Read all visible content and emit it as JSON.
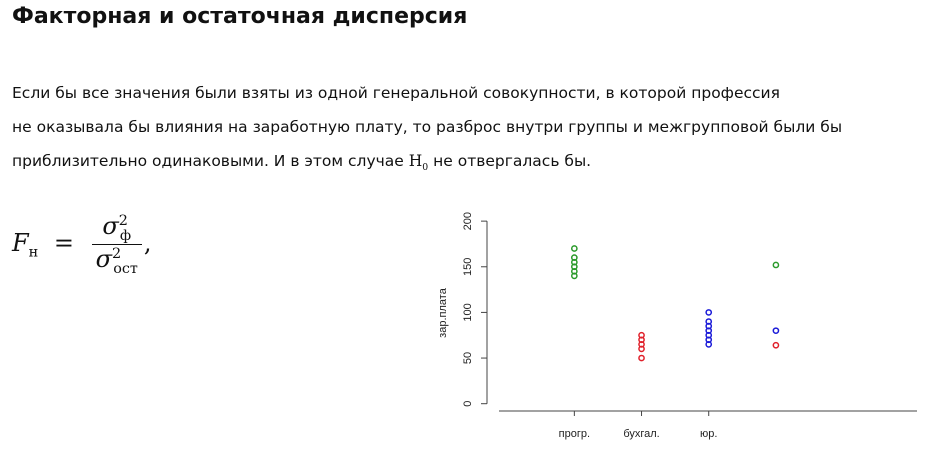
{
  "header": {
    "title": "Факторная и остаточная дисперсия"
  },
  "paragraph": {
    "line1": "Если бы все значения были взяты из одной генеральной совокупности, в которой профессия",
    "line2": "не оказывала бы влияния на заработную плату, то разброс внутри группы и межгрупповой были бы",
    "line3_start": "приблизительно одинаковыми. И в этом случае ",
    "line3_var": "H",
    "line3_sub": "0",
    "line3_end": " не отвергалась бы."
  },
  "formula": {
    "lhs": "F",
    "lhs_sub": "н",
    "equals": "=",
    "num": "σ",
    "num_sub": "ф",
    "num_sup": "2",
    "den": "σ",
    "den_sub": "ост",
    "den_sup": "2",
    "comma": ","
  },
  "chart_data": {
    "type": "scatter",
    "y_label": "зар.плата",
    "xlim": [
      -0.3,
      6.1
    ],
    "xticks": [
      {
        "value": 1,
        "label": "прогр."
      },
      {
        "value": 2,
        "label": "бухгал."
      },
      {
        "value": 3,
        "label": "юр."
      }
    ],
    "ylim": [
      -8,
      210
    ],
    "yticks": [
      0,
      50,
      100,
      150,
      200
    ],
    "series": [
      {
        "color": "#2a9a2a",
        "x": [
          1,
          1,
          1,
          1,
          1,
          1,
          4
        ],
        "values": [
          140,
          145,
          150,
          155,
          160,
          170,
          152
        ]
      },
      {
        "color": "#e0202a",
        "x": [
          2,
          2,
          2,
          2,
          2,
          4
        ],
        "values": [
          50,
          60,
          65,
          70,
          75,
          64
        ]
      },
      {
        "color": "#1a1ad8",
        "x": [
          3,
          3,
          3,
          3,
          3,
          3,
          3,
          4
        ],
        "values": [
          65,
          70,
          75,
          80,
          85,
          90,
          100,
          80
        ]
      }
    ]
  }
}
